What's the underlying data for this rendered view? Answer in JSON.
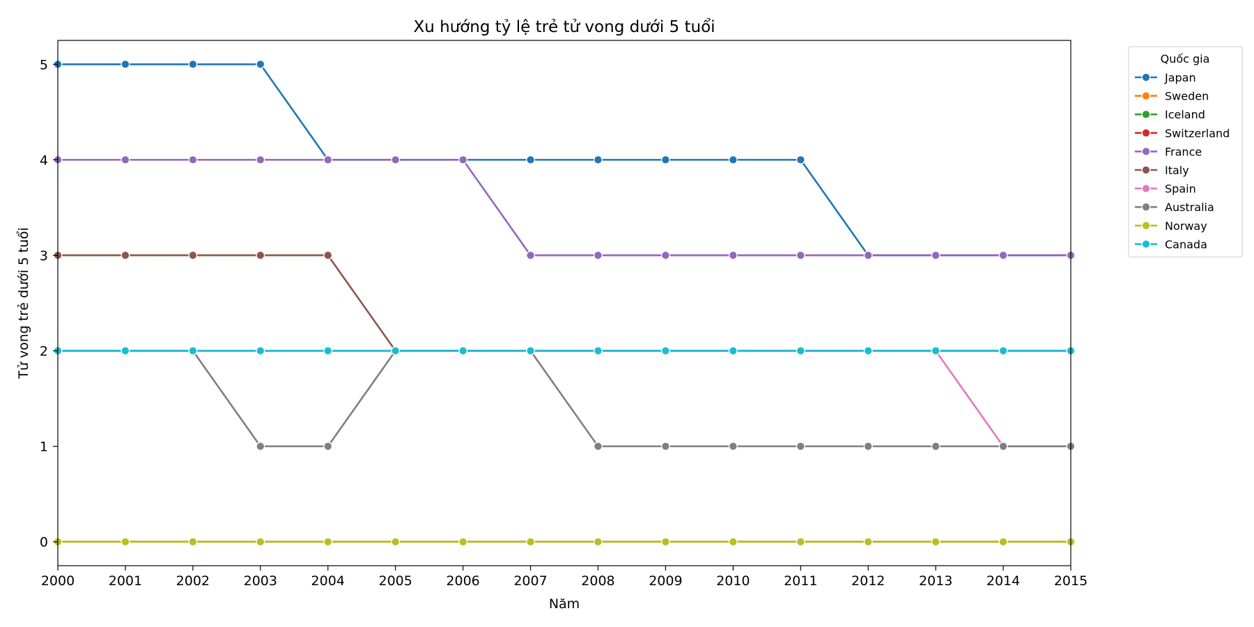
{
  "chart_data": {
    "type": "line",
    "title": "Xu hướng tỷ lệ trẻ tử vong dưới 5 tuổi",
    "xlabel": "Năm",
    "ylabel": "Tử vong trẻ dưới 5 tuổi",
    "x": [
      2000,
      2001,
      2002,
      2003,
      2004,
      2005,
      2006,
      2007,
      2008,
      2009,
      2010,
      2011,
      2012,
      2013,
      2014,
      2015
    ],
    "xlim": [
      2000,
      2015
    ],
    "ylim": [
      -0.25,
      5.25
    ],
    "yticks": [
      0,
      1,
      2,
      3,
      4,
      5
    ],
    "grid": false,
    "legend_title": "Quốc gia",
    "legend_position": "outside-top-right",
    "series": [
      {
        "name": "Japan",
        "color": "#1f77b4",
        "values": [
          5,
          5,
          5,
          5,
          4,
          4,
          4,
          4,
          4,
          4,
          4,
          4,
          3,
          3,
          3,
          3
        ]
      },
      {
        "name": "Sweden",
        "color": "#ff7f0e",
        "values": [
          0,
          0,
          0,
          0,
          0,
          0,
          0,
          0,
          0,
          0,
          0,
          0,
          0,
          0,
          0,
          0
        ]
      },
      {
        "name": "Iceland",
        "color": "#2ca02c",
        "values": [
          0,
          0,
          0,
          0,
          0,
          0,
          0,
          0,
          0,
          0,
          0,
          0,
          0,
          0,
          0,
          0
        ]
      },
      {
        "name": "Switzerland",
        "color": "#d62728",
        "values": [
          0,
          0,
          0,
          0,
          0,
          0,
          0,
          0,
          0,
          0,
          0,
          0,
          0,
          0,
          0,
          0
        ]
      },
      {
        "name": "France",
        "color": "#9467bd",
        "values": [
          4,
          4,
          4,
          4,
          4,
          4,
          4,
          3,
          3,
          3,
          3,
          3,
          3,
          3,
          3,
          3
        ]
      },
      {
        "name": "Italy",
        "color": "#8c564b",
        "values": [
          3,
          3,
          3,
          3,
          3,
          2,
          2,
          2,
          2,
          2,
          2,
          2,
          2,
          2,
          2,
          2
        ]
      },
      {
        "name": "Spain",
        "color": "#e377c2",
        "values": [
          2,
          2,
          2,
          2,
          2,
          2,
          2,
          2,
          2,
          2,
          2,
          2,
          2,
          2,
          1,
          1
        ]
      },
      {
        "name": "Australia",
        "color": "#7f7f7f",
        "values": [
          2,
          2,
          2,
          1,
          1,
          2,
          2,
          2,
          1,
          1,
          1,
          1,
          1,
          1,
          1,
          1
        ]
      },
      {
        "name": "Norway",
        "color": "#bcbd22",
        "values": [
          0,
          0,
          0,
          0,
          0,
          0,
          0,
          0,
          0,
          0,
          0,
          0,
          0,
          0,
          0,
          0
        ]
      },
      {
        "name": "Canada",
        "color": "#17becf",
        "values": [
          2,
          2,
          2,
          2,
          2,
          2,
          2,
          2,
          2,
          2,
          2,
          2,
          2,
          2,
          2,
          2
        ]
      }
    ]
  }
}
